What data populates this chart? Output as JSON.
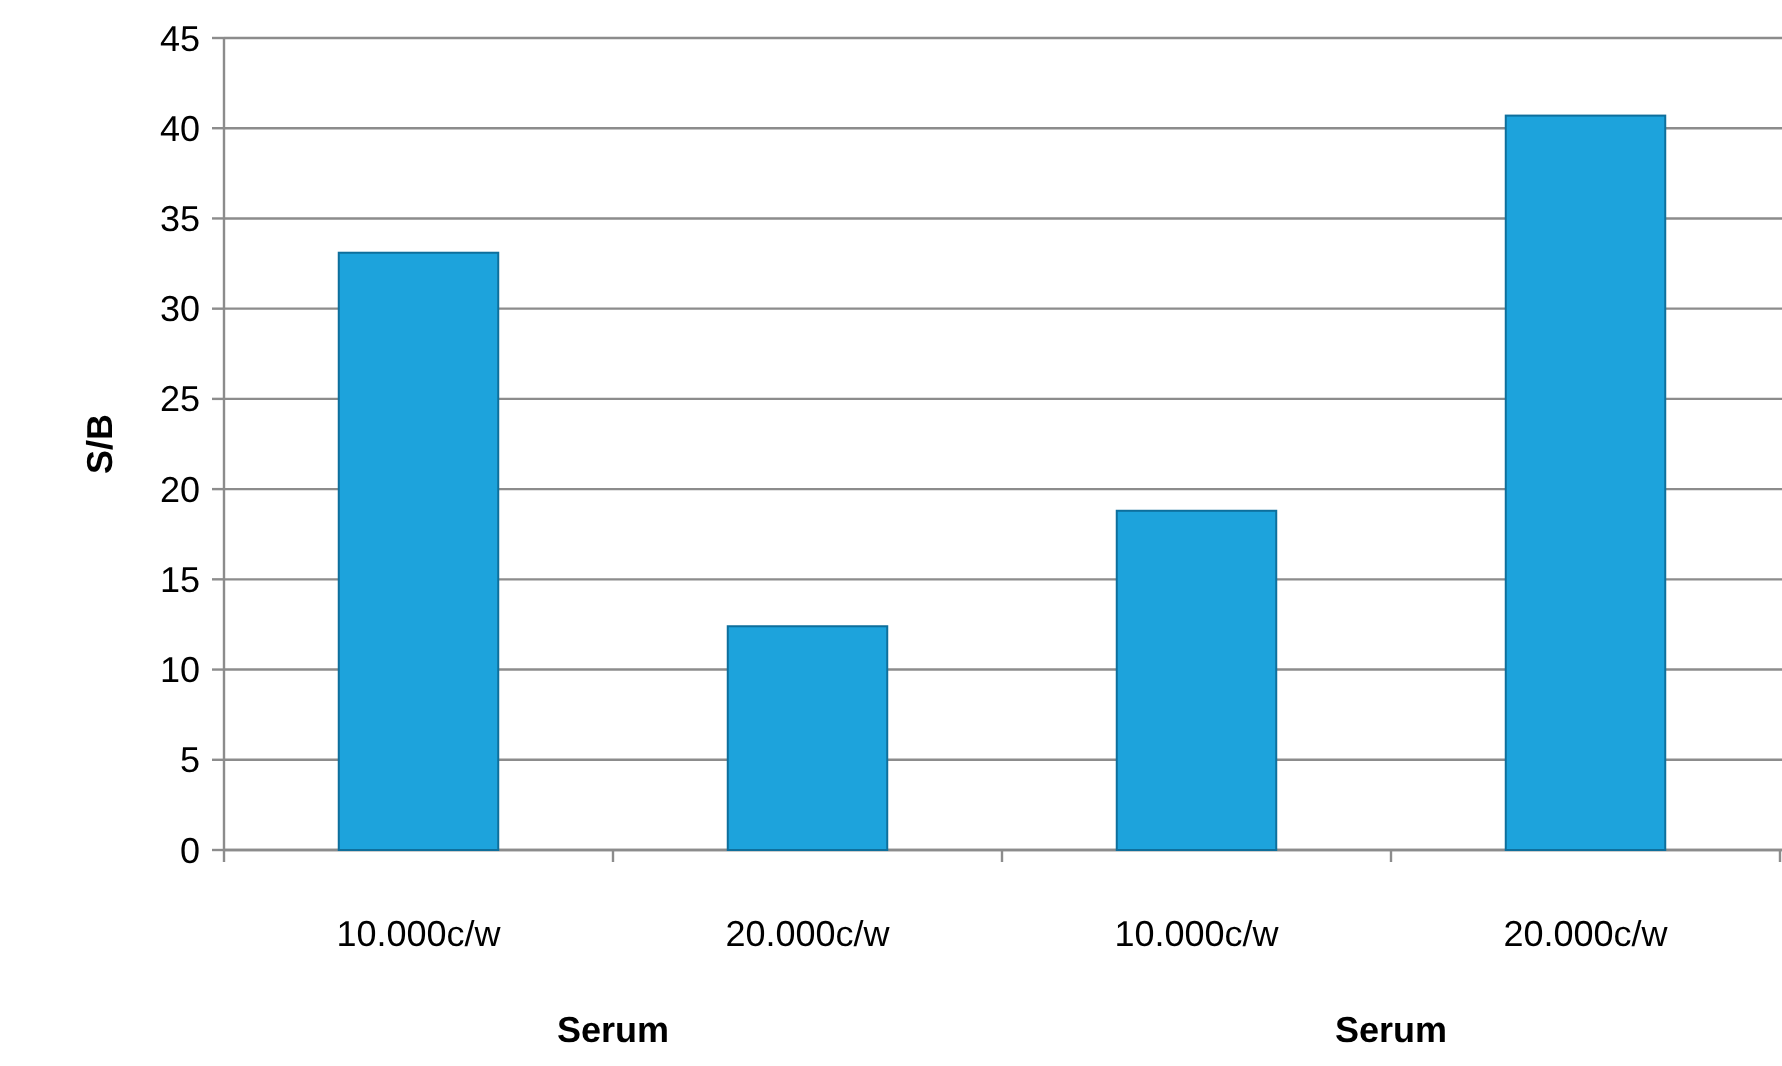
{
  "chart_data": {
    "type": "bar",
    "ylabel": "S/B",
    "categories": [
      "10.000c/w",
      "20.000c/w",
      "10.000c/w",
      "20.000c/w"
    ],
    "values": [
      33.1,
      12.4,
      18.8,
      40.7
    ],
    "color": "#1da3dc",
    "ylim": [
      0,
      45
    ],
    "yticks": [
      0,
      5,
      10,
      15,
      20,
      25,
      30,
      35,
      40,
      45
    ],
    "grid": "y",
    "annotations": [
      "Serum",
      "Serum"
    ]
  }
}
